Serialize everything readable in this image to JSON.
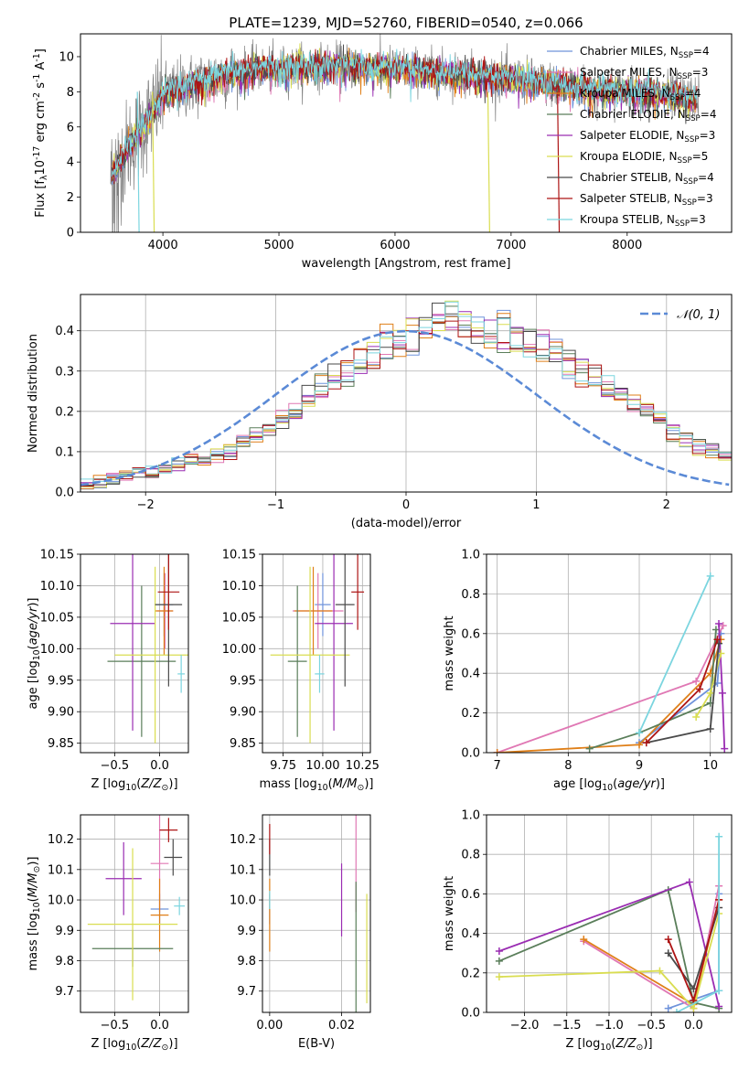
{
  "colors": {
    "series": [
      "#6f93db",
      "#e078b4",
      "#df7f18",
      "#5a7e5a",
      "#9a2db2",
      "#d9dd50",
      "#4a4a4a",
      "#ad1414",
      "#7bd5df"
    ],
    "spectrum": "#808080",
    "normal": "#5b8ad6",
    "grid": "#b0b0b0"
  },
  "chart_data": [
    {
      "id": "spectrum",
      "type": "line",
      "title": "PLATE=1239, MJD=52760, FIBERID=0540, z=0.066",
      "xlabel": "wavelength [Angstrom, rest frame]",
      "ylabel": "Flux [f$_\\lambda$10$^{-17}$ erg cm$^{-2}$ s$^{-1}$ A$^{-1}$]",
      "xlim": [
        3290,
        8900
      ],
      "ylim": [
        0,
        11.3
      ],
      "xticks": [
        4000,
        5000,
        6000,
        7000,
        8000
      ],
      "yticks": [
        0,
        2,
        4,
        6,
        8,
        10
      ],
      "grid": false,
      "legend_position": "upper-right",
      "legend": [
        {
          "label": "Chabrier MILES, N$_{SSP}$=4"
        },
        {
          "label": "Salpeter MILES, N$_{SSP}$=3"
        },
        {
          "label": "Kroupa MILES, N$_{SSP}$=4"
        },
        {
          "label": "Chabrier ELODIE, N$_{SSP}$=4"
        },
        {
          "label": "Salpeter ELODIE, N$_{SSP}$=3"
        },
        {
          "label": "Kroupa ELODIE, N$_{SSP}$=5"
        },
        {
          "label": "Chabrier STELIB, N$_{SSP}$=4"
        },
        {
          "label": "Salpeter STELIB, N$_{SSP}$=3"
        },
        {
          "label": "Kroupa STELIB, N$_{SSP}$=3"
        }
      ],
      "continuum": {
        "x": [
          3550,
          3700,
          3850,
          4000,
          4200,
          4400,
          4600,
          4800,
          5000,
          5200,
          5500,
          5800,
          6100,
          6400,
          6800,
          7200,
          7500,
          7800,
          8100,
          8400,
          8600
        ],
        "y": [
          3.2,
          4.8,
          6.2,
          7.8,
          8.3,
          8.7,
          9.1,
          9.3,
          9.3,
          9.4,
          9.5,
          9.4,
          9.3,
          9.1,
          8.9,
          8.6,
          8.3,
          8.1,
          8.0,
          7.8,
          7.6
        ]
      }
    },
    {
      "id": "residuals",
      "type": "histogram",
      "xlabel": "(data-model)/error",
      "ylabel": "Normed distribution",
      "xlim": [
        -2.5,
        2.5
      ],
      "ylim": [
        0,
        0.49
      ],
      "xticks": [
        -2,
        -1,
        0,
        1,
        2
      ],
      "yticks": [
        0.0,
        0.1,
        0.2,
        0.3,
        0.4
      ],
      "grid": true,
      "legend_position": "upper-right",
      "legend": [
        {
          "label": "𝒩(0, 1)"
        }
      ],
      "bin_width": 0.1,
      "bin_start": -2.5,
      "reference_values": [
        0.02,
        0.025,
        0.035,
        0.04,
        0.045,
        0.05,
        0.06,
        0.07,
        0.08,
        0.08,
        0.09,
        0.1,
        0.12,
        0.14,
        0.16,
        0.18,
        0.21,
        0.23,
        0.26,
        0.28,
        0.3,
        0.32,
        0.35,
        0.37,
        0.38,
        0.39,
        0.41,
        0.42,
        0.44,
        0.41,
        0.4,
        0.39,
        0.4,
        0.38,
        0.37,
        0.36,
        0.34,
        0.32,
        0.3,
        0.28,
        0.26,
        0.24,
        0.22,
        0.2,
        0.18,
        0.15,
        0.13,
        0.11,
        0.1,
        0.09,
        0.08,
        0.06,
        0.05,
        0.045,
        0.04,
        0.035,
        0.03,
        0.03,
        0.025,
        0.02
      ]
    },
    {
      "id": "age_vs_Z",
      "type": "errorbar",
      "xlabel": "Z [log$_{10}$($Z/Z_\\odot$)]",
      "ylabel": "age  [log$_{10}$($age/yr$)]",
      "xlim": [
        -0.88,
        0.32
      ],
      "ylim": [
        9.835,
        10.15
      ],
      "xticks": [
        -0.5,
        0.0
      ],
      "yticks": [
        9.85,
        9.9,
        9.95,
        10.0,
        10.05,
        10.1,
        10.15
      ],
      "grid": true,
      "points": [
        {
          "x": 0.05,
          "y": 10.07,
          "xerr": 0.1,
          "yerr": 0.05
        },
        {
          "x": 0.06,
          "y": 10.06,
          "xerr": 0.09,
          "yerr": 0.06
        },
        {
          "x": 0.05,
          "y": 10.06,
          "xerr": 0.1,
          "yerr": 0.07
        },
        {
          "x": -0.2,
          "y": 9.98,
          "xerr": 0.38,
          "yerr": 0.12
        },
        {
          "x": -0.3,
          "y": 10.04,
          "xerr": 0.25,
          "yerr": 0.17
        },
        {
          "x": -0.05,
          "y": 9.99,
          "xerr": 0.45,
          "yerr": 0.14
        },
        {
          "x": 0.1,
          "y": 10.07,
          "xerr": 0.15,
          "yerr": 0.13
        },
        {
          "x": 0.1,
          "y": 10.09,
          "xerr": 0.12,
          "yerr": 0.06
        },
        {
          "x": 0.24,
          "y": 9.96,
          "xerr": 0.04,
          "yerr": 0.03
        }
      ]
    },
    {
      "id": "age_vs_mass",
      "type": "errorbar",
      "xlabel": "mass [log$_{10}$($M/M_\\odot$)]",
      "ylabel": "",
      "xlim": [
        9.62,
        10.3
      ],
      "ylim": [
        9.835,
        10.15
      ],
      "xticks": [
        9.75,
        10.0,
        10.25
      ],
      "yticks": [
        9.85,
        9.9,
        9.95,
        10.0,
        10.05,
        10.1,
        10.15
      ],
      "grid": true,
      "points": [
        {
          "x": 10.0,
          "y": 10.07,
          "xerr": 0.05,
          "yerr": 0.05
        },
        {
          "x": 9.97,
          "y": 10.06,
          "xerr": 0.16,
          "yerr": 0.06
        },
        {
          "x": 9.94,
          "y": 10.06,
          "xerr": 0.12,
          "yerr": 0.07
        },
        {
          "x": 9.84,
          "y": 9.98,
          "xerr": 0.06,
          "yerr": 0.12
        },
        {
          "x": 10.07,
          "y": 10.04,
          "xerr": 0.12,
          "yerr": 0.17
        },
        {
          "x": 9.92,
          "y": 9.99,
          "xerr": 0.25,
          "yerr": 0.14
        },
        {
          "x": 10.14,
          "y": 10.07,
          "xerr": 0.06,
          "yerr": 0.13
        },
        {
          "x": 10.22,
          "y": 10.09,
          "xerr": 0.04,
          "yerr": 0.06
        },
        {
          "x": 9.98,
          "y": 9.96,
          "xerr": 0.03,
          "yerr": 0.03
        }
      ]
    },
    {
      "id": "massweight_vs_age",
      "type": "line",
      "xlabel": "age  [log$_{10}$($age/yr$)]",
      "ylabel": "mass weight",
      "xlim": [
        6.85,
        10.3
      ],
      "ylim": [
        0,
        1.0
      ],
      "xticks": [
        7,
        8,
        9,
        10
      ],
      "yticks": [
        0.0,
        0.2,
        0.4,
        0.6,
        0.8,
        1.0
      ],
      "grid": true,
      "series": [
        {
          "x": [
            10.15,
            10.1,
            9.0
          ],
          "y": [
            0.6,
            0.35,
            0.05
          ]
        },
        {
          "x": [
            7.0,
            9.8,
            10.18
          ],
          "y": [
            0.0,
            0.36,
            0.64
          ]
        },
        {
          "x": [
            7.0,
            9.0,
            10.0,
            10.15
          ],
          "y": [
            0.0,
            0.04,
            0.4,
            0.57
          ]
        },
        {
          "x": [
            8.3,
            9.0,
            10.0,
            10.08
          ],
          "y": [
            0.02,
            0.1,
            0.25,
            0.62
          ]
        },
        {
          "x": [
            10.2,
            10.17,
            10.12
          ],
          "y": [
            0.02,
            0.3,
            0.65
          ]
        },
        {
          "x": [
            9.8,
            10.0,
            10.15
          ],
          "y": [
            0.18,
            0.3,
            0.5
          ]
        },
        {
          "x": [
            9.1,
            10.0,
            10.12
          ],
          "y": [
            0.05,
            0.12,
            0.55
          ]
        },
        {
          "x": [
            9.1,
            9.85,
            10.1
          ],
          "y": [
            0.05,
            0.32,
            0.57
          ]
        },
        {
          "x": [
            9.0,
            10.0
          ],
          "y": [
            0.1,
            0.89
          ]
        }
      ]
    },
    {
      "id": "mass_vs_Z",
      "type": "errorbar",
      "xlabel": "Z [log$_{10}$($Z/Z_\\odot$)]",
      "ylabel": "mass [log$_{10}$($M/M_\\odot$)]",
      "xlim": [
        -0.88,
        0.32
      ],
      "ylim": [
        9.63,
        10.28
      ],
      "xticks": [
        -0.5,
        0.0
      ],
      "yticks": [
        9.7,
        9.8,
        9.9,
        10.0,
        10.1,
        10.2
      ],
      "grid": true,
      "points": [
        {
          "x": 0.0,
          "y": 9.97,
          "xerr": 0.1,
          "yerr": 0.05
        },
        {
          "x": 0.0,
          "y": 10.12,
          "xerr": 0.1,
          "yerr": 0.16
        },
        {
          "x": 0.0,
          "y": 9.95,
          "xerr": 0.1,
          "yerr": 0.12
        },
        {
          "x": -0.3,
          "y": 9.84,
          "xerr": 0.45,
          "yerr": 0.06
        },
        {
          "x": -0.4,
          "y": 10.07,
          "xerr": 0.2,
          "yerr": 0.12
        },
        {
          "x": -0.3,
          "y": 9.92,
          "xerr": 0.5,
          "yerr": 0.25
        },
        {
          "x": 0.15,
          "y": 10.14,
          "xerr": 0.1,
          "yerr": 0.06
        },
        {
          "x": 0.1,
          "y": 10.23,
          "xerr": 0.1,
          "yerr": 0.04
        },
        {
          "x": 0.22,
          "y": 9.98,
          "xerr": 0.06,
          "yerr": 0.03
        }
      ]
    },
    {
      "id": "mass_vs_ebv",
      "type": "errorbar",
      "xlabel": "E(B-V)",
      "ylabel": "",
      "xlim": [
        -0.002,
        0.028
      ],
      "ylim": [
        9.63,
        10.28
      ],
      "xticks": [
        0.0,
        0.02
      ],
      "yticks": [
        9.7,
        9.8,
        9.9,
        10.0,
        10.1,
        10.2
      ],
      "grid": true,
      "points": [
        {
          "x": 0.0,
          "y": 9.97,
          "xerr": 0,
          "yerr": 0.05
        },
        {
          "x": 0.024,
          "y": 10.12,
          "xerr": 0,
          "yerr": 0.16
        },
        {
          "x": 0.0,
          "y": 9.95,
          "xerr": 0,
          "yerr": 0.12
        },
        {
          "x": 0.024,
          "y": 9.84,
          "xerr": 0,
          "yerr": 0.22
        },
        {
          "x": 0.02,
          "y": 10.0,
          "xerr": 0,
          "yerr": 0.12
        },
        {
          "x": 0.027,
          "y": 9.84,
          "xerr": 0,
          "yerr": 0.18
        },
        {
          "x": 0.0,
          "y": 10.14,
          "xerr": 0,
          "yerr": 0.06
        },
        {
          "x": 0.0,
          "y": 10.2,
          "xerr": 0,
          "yerr": 0.05
        },
        {
          "x": 0.0,
          "y": 10.0,
          "xerr": 0,
          "yerr": 0.03
        }
      ]
    },
    {
      "id": "massweight_vs_Z",
      "type": "line",
      "xlabel": "Z [log$_{10}$($Z/Z_\\odot$)]",
      "ylabel": "mass weight",
      "xlim": [
        -2.45,
        0.45
      ],
      "ylim": [
        0,
        1.0
      ],
      "xticks": [
        -2.0,
        -1.5,
        -1.0,
        -0.5,
        0.0
      ],
      "yticks": [
        0.0,
        0.2,
        0.4,
        0.6,
        0.8,
        1.0
      ],
      "grid": true,
      "series": [
        {
          "x": [
            0.3,
            0.3,
            -0.3
          ],
          "y": [
            0.6,
            0.11,
            0.02
          ]
        },
        {
          "x": [
            -1.3,
            0.0,
            0.3
          ],
          "y": [
            0.36,
            0.02,
            0.64
          ]
        },
        {
          "x": [
            -1.3,
            0.0,
            0.3
          ],
          "y": [
            0.37,
            0.04,
            0.57
          ]
        },
        {
          "x": [
            -2.3,
            -0.3,
            0.0,
            0.3
          ],
          "y": [
            0.26,
            0.62,
            0.05,
            0.02
          ]
        },
        {
          "x": [
            -2.3,
            -0.05,
            0.3
          ],
          "y": [
            0.31,
            0.66,
            0.03
          ]
        },
        {
          "x": [
            -2.3,
            -0.4,
            0.0,
            0.3
          ],
          "y": [
            0.18,
            0.21,
            0.02,
            0.5
          ]
        },
        {
          "x": [
            -0.3,
            0.0,
            0.3
          ],
          "y": [
            0.3,
            0.12,
            0.53
          ]
        },
        {
          "x": [
            -0.3,
            0.0,
            0.3
          ],
          "y": [
            0.37,
            0.06,
            0.57
          ]
        },
        {
          "x": [
            0.3,
            0.3,
            -0.2
          ],
          "y": [
            0.89,
            0.11,
            0.0
          ]
        }
      ]
    }
  ]
}
